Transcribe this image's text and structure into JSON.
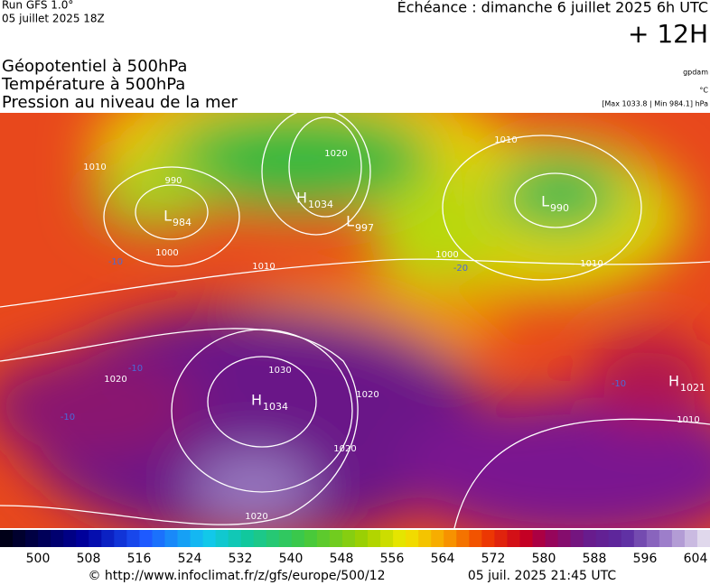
{
  "header": {
    "run": "Run GFS 1.0°",
    "date": "05 juillet 2025 18Z",
    "forecast": "Échéance : dimanche 6 juillet 2025 6h UTC",
    "lead": "+ 12H"
  },
  "legend": {
    "lines": [
      "Géopotentiel à 500hPa",
      "Température à 500hPa",
      "Pression au niveau de la mer"
    ],
    "units": [
      "gpdam",
      "°C"
    ],
    "extremes": "[Max 1033.8 | Min 984.1] hPa"
  },
  "map": {
    "centers": [
      {
        "type": "H",
        "value": "1034"
      },
      {
        "type": "L",
        "value": "984"
      },
      {
        "type": "L",
        "value": "997"
      },
      {
        "type": "L",
        "value": "990"
      },
      {
        "type": "H",
        "value": "1034"
      },
      {
        "type": "H",
        "value": "1021"
      }
    ],
    "isobar_labels": [
      "1010",
      "1010",
      "1010",
      "1010",
      "1010",
      "1020",
      "1020",
      "1020",
      "1020",
      "1030",
      "1000",
      "1000",
      "990",
      "1020"
    ],
    "temp_labels": [
      "-10",
      "-10",
      "-10",
      "-10",
      "-20"
    ]
  },
  "colorbar": {
    "ticks": [
      500,
      508,
      516,
      524,
      532,
      540,
      548,
      556,
      564,
      572,
      580,
      588,
      596,
      604
    ]
  },
  "footer": {
    "url": "© http://www.infoclimat.fr/z/gfs/europe/500/12",
    "time": "05 juil. 2025 21:45 UTC"
  }
}
